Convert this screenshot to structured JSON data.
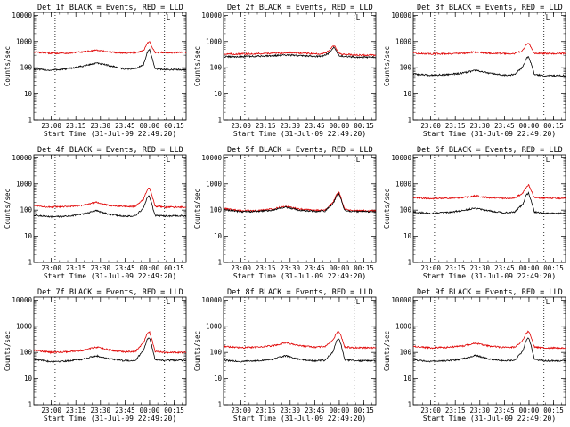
{
  "common": {
    "xlabel": "Start Time (31-Jul-09 22:49:20)",
    "ylabel": "Counts/sec",
    "x_ticks": [
      "23:00",
      "23:15",
      "23:30",
      "23:45",
      "00:00",
      "00:15"
    ],
    "x_tick_minutes": [
      10.67,
      25.67,
      40.67,
      55.67,
      70.67,
      85.67
    ],
    "y_ticks": [
      "1",
      "10",
      "100",
      "1000",
      "10000"
    ],
    "y_tick_values": [
      1,
      10,
      100,
      1000,
      10000
    ],
    "xlim": [
      0,
      93
    ],
    "ylim": [
      1,
      13000
    ],
    "y_scale": "log",
    "vlines_minutes": [
      13.0,
      79.8
    ],
    "marker": "L",
    "series_colors": {
      "events": "#000000",
      "lld": "#e00000"
    }
  },
  "chart_data": [
    {
      "type": "line",
      "title": "Det 1f BLACK = Events, RED = LLD",
      "x_minutes": [
        0,
        10,
        20,
        30,
        38,
        46,
        55,
        62,
        67,
        69,
        70.5,
        72,
        74,
        80,
        93
      ],
      "series": [
        {
          "key": "events",
          "values": [
            88,
            80,
            90,
            115,
            150,
            120,
            90,
            92,
            130,
            350,
            520,
            250,
            92,
            85,
            85
          ]
        },
        {
          "key": "lld",
          "values": [
            400,
            360,
            360,
            400,
            470,
            400,
            370,
            380,
            460,
            800,
            1050,
            620,
            380,
            380,
            380
          ]
        }
      ]
    },
    {
      "type": "line",
      "title": "Det 2f BLACK = Events, RED = LLD",
      "x_minutes": [
        0,
        10,
        20,
        30,
        40,
        50,
        60,
        64,
        66,
        67.5,
        69,
        71,
        80,
        93
      ],
      "series": [
        {
          "key": "events",
          "values": [
            260,
            265,
            275,
            290,
            300,
            285,
            270,
            350,
            500,
            600,
            420,
            280,
            255,
            250
          ]
        },
        {
          "key": "lld",
          "values": [
            330,
            335,
            345,
            360,
            375,
            355,
            335,
            420,
            600,
            700,
            500,
            340,
            310,
            300
          ]
        }
      ]
    },
    {
      "type": "line",
      "title": "Det 3f BLACK = Events, RED = LLD",
      "x_minutes": [
        0,
        10,
        20,
        30,
        38,
        46,
        55,
        62,
        67,
        69,
        70.5,
        72,
        74,
        80,
        93
      ],
      "series": [
        {
          "key": "events",
          "values": [
            58,
            52,
            55,
            62,
            80,
            62,
            52,
            55,
            110,
            220,
            270,
            140,
            55,
            50,
            50
          ]
        },
        {
          "key": "lld",
          "values": [
            360,
            340,
            345,
            360,
            400,
            360,
            345,
            350,
            460,
            750,
            850,
            600,
            360,
            350,
            350
          ]
        }
      ]
    },
    {
      "type": "line",
      "title": "Det 4f BLACK = Events, RED = LLD",
      "x_minutes": [
        0,
        10,
        20,
        30,
        38,
        46,
        55,
        62,
        67,
        69,
        70.5,
        72,
        74,
        80,
        93
      ],
      "series": [
        {
          "key": "events",
          "values": [
            65,
            55,
            58,
            70,
            95,
            70,
            58,
            60,
            120,
            280,
            350,
            170,
            62,
            60,
            60
          ]
        },
        {
          "key": "lld",
          "values": [
            150,
            130,
            135,
            155,
            200,
            150,
            135,
            140,
            260,
            550,
            700,
            380,
            140,
            130,
            130
          ]
        }
      ]
    },
    {
      "type": "line",
      "title": "Det 5f BLACK = Events, RED = LLD",
      "x_minutes": [
        0,
        10,
        20,
        30,
        38,
        46,
        55,
        62,
        67,
        69,
        70.5,
        72,
        74,
        80,
        93
      ],
      "series": [
        {
          "key": "events",
          "values": [
            105,
            88,
            88,
            100,
            130,
            100,
            90,
            92,
            180,
            350,
            420,
            230,
            95,
            88,
            88
          ]
        },
        {
          "key": "lld",
          "values": [
            115,
            95,
            95,
            110,
            140,
            110,
            98,
            100,
            200,
            400,
            480,
            260,
            105,
            95,
            95
          ]
        }
      ]
    },
    {
      "type": "line",
      "title": "Det 6f BLACK = Events, RED = LLD",
      "x_minutes": [
        0,
        10,
        20,
        30,
        38,
        46,
        55,
        62,
        67,
        69,
        70.5,
        72,
        74,
        80,
        93
      ],
      "series": [
        {
          "key": "events",
          "values": [
            85,
            75,
            80,
            95,
            120,
            95,
            80,
            85,
            170,
            380,
            450,
            220,
            85,
            75,
            75
          ]
        },
        {
          "key": "lld",
          "values": [
            300,
            275,
            280,
            300,
            350,
            300,
            285,
            290,
            450,
            750,
            900,
            550,
            300,
            285,
            285
          ]
        }
      ]
    },
    {
      "type": "line",
      "title": "Det 7f BLACK = Events, RED = LLD",
      "x_minutes": [
        0,
        10,
        20,
        30,
        38,
        46,
        55,
        62,
        67,
        69,
        70.5,
        72,
        74,
        80,
        93
      ],
      "series": [
        {
          "key": "events",
          "values": [
            55,
            45,
            47,
            55,
            75,
            58,
            48,
            50,
            120,
            300,
            380,
            180,
            55,
            50,
            50
          ]
        },
        {
          "key": "lld",
          "values": [
            125,
            100,
            105,
            120,
            160,
            125,
            105,
            110,
            230,
            500,
            620,
            320,
            110,
            100,
            100
          ]
        }
      ]
    },
    {
      "type": "line",
      "title": "Det 8f BLACK = Events, RED = LLD",
      "x_minutes": [
        0,
        10,
        20,
        30,
        38,
        46,
        55,
        62,
        67,
        69,
        70.5,
        72,
        74,
        80,
        93
      ],
      "series": [
        {
          "key": "events",
          "values": [
            50,
            45,
            48,
            55,
            75,
            55,
            48,
            50,
            110,
            280,
            340,
            170,
            52,
            48,
            48
          ]
        },
        {
          "key": "lld",
          "values": [
            170,
            150,
            160,
            180,
            230,
            180,
            160,
            165,
            300,
            560,
            650,
            380,
            160,
            150,
            150
          ]
        }
      ]
    },
    {
      "type": "line",
      "title": "Det 9f BLACK = Events, RED = LLD",
      "x_minutes": [
        0,
        10,
        20,
        30,
        38,
        46,
        55,
        62,
        67,
        69,
        70.5,
        72,
        74,
        80,
        93
      ],
      "series": [
        {
          "key": "events",
          "values": [
            52,
            46,
            48,
            56,
            78,
            56,
            48,
            50,
            115,
            290,
            360,
            175,
            54,
            48,
            48
          ]
        },
        {
          "key": "lld",
          "values": [
            170,
            150,
            155,
            175,
            225,
            175,
            155,
            160,
            290,
            550,
            650,
            370,
            160,
            150,
            150
          ]
        }
      ]
    }
  ]
}
